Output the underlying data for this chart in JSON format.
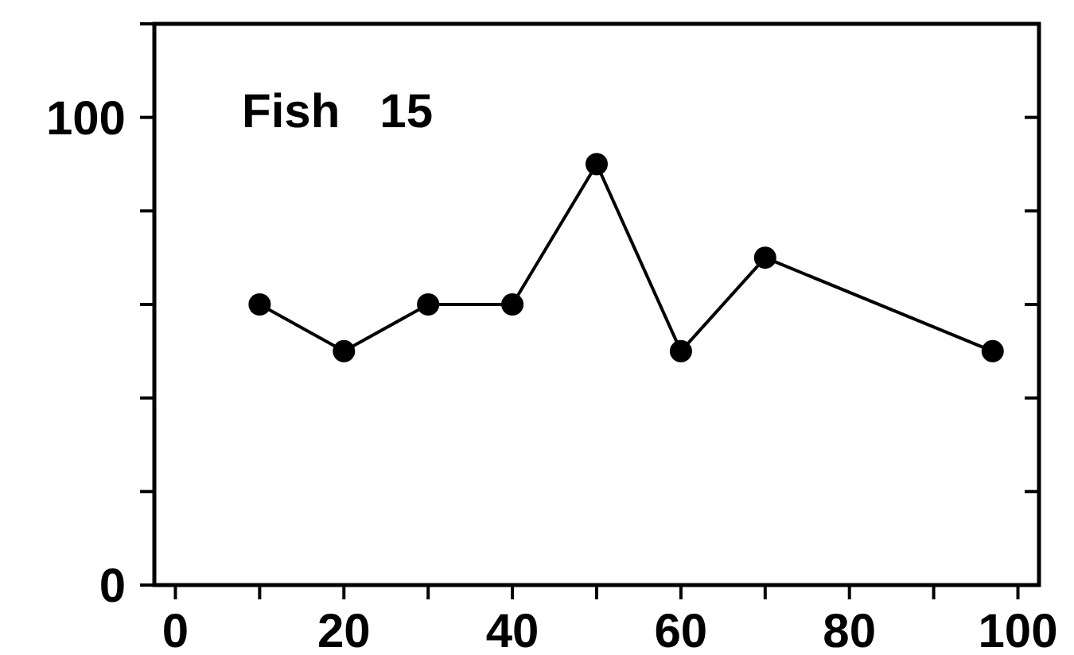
{
  "chart_data": {
    "type": "line",
    "title": "Fish   15",
    "x": [
      10,
      20,
      30,
      40,
      50,
      60,
      70,
      97
    ],
    "series": [
      {
        "color": "#000000",
        "values": [
          60,
          50,
          60,
          60,
          90,
          50,
          70,
          50
        ]
      }
    ],
    "xlim": [
      -2.5,
      102.5
    ],
    "ylim": [
      0,
      120
    ],
    "xticks": [
      0,
      {
        "value": 10,
        "label": null
      },
      20,
      {
        "value": 30,
        "label": null
      },
      40,
      {
        "value": 50,
        "label": null
      },
      60,
      {
        "value": 70,
        "label": null
      },
      80,
      {
        "value": 90,
        "label": null
      },
      100
    ],
    "yticks": [
      0,
      {
        "value": 20,
        "label": null
      },
      {
        "value": 40,
        "label": null
      },
      {
        "value": 60,
        "label": null
      },
      {
        "value": 80,
        "label": null
      },
      100,
      {
        "value": 120,
        "label": null
      }
    ],
    "marker": "circle",
    "line_style": "solid",
    "grid": false
  }
}
